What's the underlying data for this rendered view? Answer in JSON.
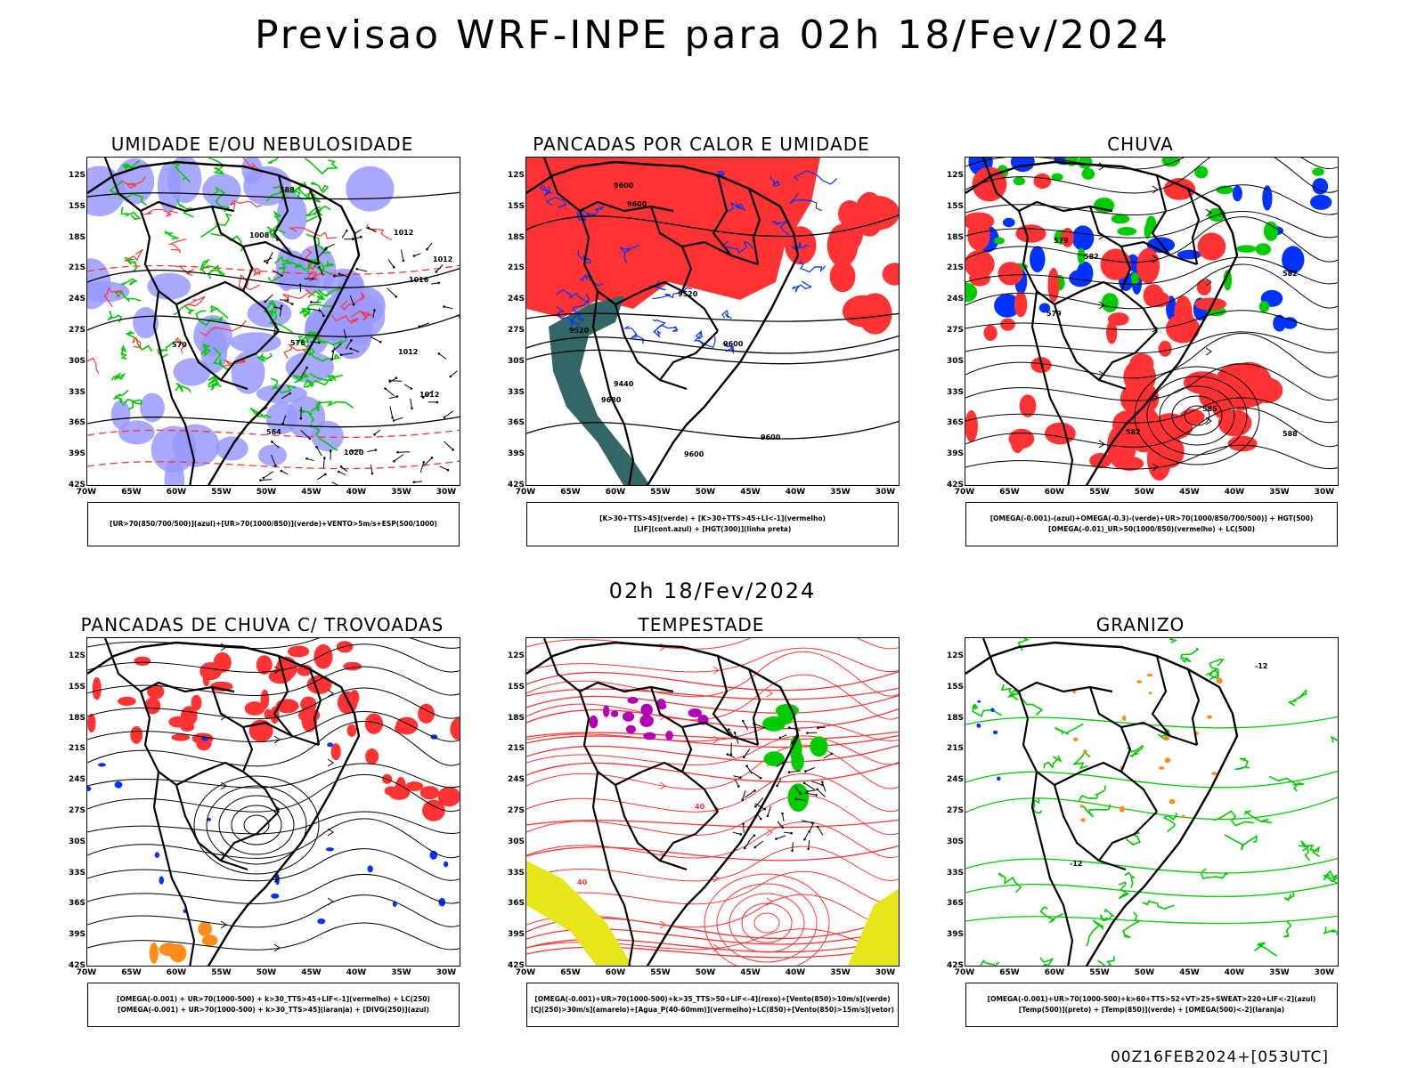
{
  "title": "Previsao WRF-INPE  para 02h 18/Fev/2024",
  "subtitle": "02h 18/Fev/2024",
  "footer": "00Z16FEB2024+[053UTC]",
  "lat_labels": [
    "12S",
    "15S",
    "18S",
    "21S",
    "24S",
    "27S",
    "30S",
    "33S",
    "36S",
    "39S",
    "42S"
  ],
  "lon_labels": [
    "70W",
    "65W",
    "60W",
    "55W",
    "50W",
    "45W",
    "40W",
    "35W",
    "30W"
  ],
  "colors": {
    "humidity_high": "#9999ff",
    "humidity_low": "#00cc00",
    "red_signal": "#ff3333",
    "blue_signal": "#0033ff",
    "dark_teal": "#336666",
    "orange_signal": "#ff8c1a",
    "yellow_signal": "#e6e61a",
    "purple_signal": "#b300b3",
    "contour_black": "#000000"
  },
  "panels": [
    {
      "id": "umidade",
      "title": "UMIDADE E/OU NEBULOSIDADE",
      "legend": [
        "[UR>70(850/700/500)](azul)+[UR>70(1000/850)](verde)+VENTO>5m/s+ESP(500/1000)"
      ],
      "contour_labels": [
        "1012",
        "1012",
        "1012",
        "1016",
        "1008",
        "1020",
        "1012",
        "570",
        "576",
        "564",
        "588"
      ]
    },
    {
      "id": "pancadas-calor",
      "title": "PANCADAS POR CALOR E UMIDADE",
      "legend": [
        "[K>30+TTS>45](verde) + [K>30+TTS>45+LI<-1](vermelho)",
        "[LIF](cont.azul) + [HGT(300)](linha preta)"
      ],
      "contour_labels": [
        "9680",
        "9600",
        "9600",
        "9520",
        "9600",
        "9600",
        "9600",
        "9520",
        "9440"
      ]
    },
    {
      "id": "chuva",
      "title": "CHUVA",
      "legend": [
        "[OMEGA(-0.001)-(azul)+OMEGA(-0.3)-(verde)+UR>70(1000/850/700/500)] + HGT(500)",
        "[OMEGA(-0.01)_UR>50(1000/850)(vermelho) + LC(500)"
      ],
      "contour_labels": [
        "585",
        "579",
        "582",
        "582",
        "588",
        "579",
        "582"
      ]
    },
    {
      "id": "pancadas-trovoadas",
      "title": "PANCADAS DE CHUVA C/ TROVOADAS",
      "legend": [
        "[OMEGA(-0.001) + UR>70(1000-500) + k>30_TTS>45+LIF<-1](vermelho) + LC(250)",
        "[OMEGA(-0.001) + UR>70(1000-500) + k>30_TTS>45](laranja) + [DIVG(250)](azul)"
      ],
      "contour_labels": []
    },
    {
      "id": "tempestade",
      "title": "TEMPESTADE",
      "legend": [
        "[OMEGA(-0.001)+UR>70(1000-500)+k>35_TTS>50+LIF<-4](roxo)+[Vento(850)>10m/s](verde)",
        "[CJ(250)>30m/s](amarelo)+[Agua_P(40-60mm)](vermelho)+LC(850)+[Vento(850)>15m/s](vetor)"
      ],
      "contour_labels": [
        "40",
        "40"
      ]
    },
    {
      "id": "granizo",
      "title": "GRANIZO",
      "legend": [
        "[OMEGA(-0.001)+UR>70(1000-500)+k>60+TTS>52+VT>25+SWEAT>220+LIF<-2](azul)",
        "[Temp(500)](preto) + [Temp(850)](verde) + [OMEGA(500)<-2](laranja)"
      ],
      "contour_labels": [
        "-12",
        "-12"
      ]
    }
  ]
}
